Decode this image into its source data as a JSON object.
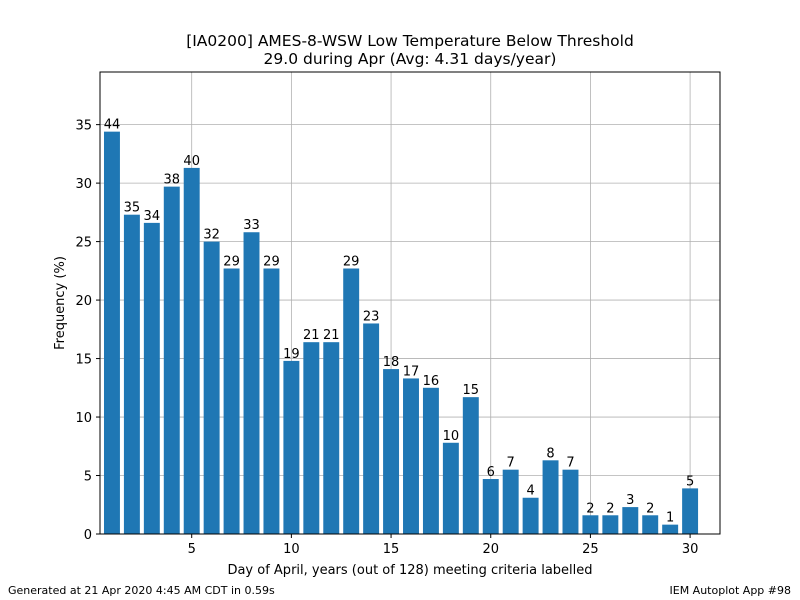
{
  "chart_data": {
    "type": "bar",
    "title": "[IA0200] AMES-8-WSW Low Temperature Below Threshold",
    "subtitle": "29.0 during Apr (Avg: 4.31 days/year)",
    "xlabel": "Day of April, years (out of 128) meeting criteria labelled",
    "ylabel": "Frequency (%)",
    "x": [
      1,
      2,
      3,
      4,
      5,
      6,
      7,
      8,
      9,
      10,
      11,
      12,
      13,
      14,
      15,
      16,
      17,
      18,
      19,
      20,
      21,
      22,
      23,
      24,
      25,
      26,
      27,
      28,
      29,
      30
    ],
    "values": [
      34.4,
      27.3,
      26.6,
      29.7,
      31.3,
      25.0,
      22.7,
      25.8,
      22.7,
      14.8,
      16.4,
      16.4,
      22.7,
      18.0,
      14.1,
      13.3,
      12.5,
      7.8,
      11.7,
      4.7,
      5.5,
      3.1,
      6.3,
      5.5,
      1.6,
      1.6,
      2.3,
      1.6,
      0.8,
      3.9
    ],
    "bar_labels": [
      "44",
      "35",
      "34",
      "38",
      "40",
      "32",
      "29",
      "33",
      "29",
      "19",
      "21",
      "21",
      "29",
      "23",
      "18",
      "17",
      "16",
      "10",
      "15",
      "6",
      "7",
      "4",
      "8",
      "7",
      "2",
      "2",
      "3",
      "2",
      "1",
      "5"
    ],
    "xlim": [
      0.4,
      31.5
    ],
    "ylim": [
      0,
      39.5
    ],
    "xticks": [
      5,
      10,
      15,
      20,
      25,
      30
    ],
    "yticks": [
      0,
      5,
      10,
      15,
      20,
      25,
      30,
      35
    ],
    "grid": true,
    "bar_color": "#1f77b4"
  },
  "footer": {
    "left": "Generated at 21 Apr 2020 4:45 AM CDT in 0.59s",
    "right": "IEM Autoplot App #98"
  }
}
